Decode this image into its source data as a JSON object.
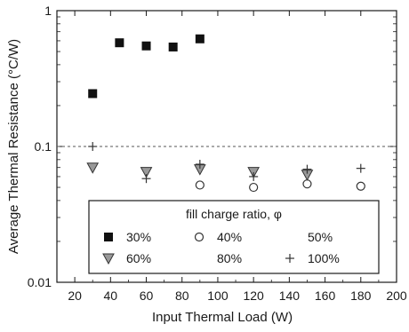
{
  "chart_data": {
    "type": "scatter",
    "xlabel": "Input Thermal Load (W)",
    "ylabel": "Average Thermal Resistance (°C/W)",
    "xlim": [
      10,
      200
    ],
    "ylim": [
      0.01,
      1
    ],
    "y_scale": "log",
    "grid": false,
    "x_ticks": [
      20,
      40,
      60,
      80,
      100,
      120,
      140,
      160,
      180,
      200
    ],
    "x_tick_labels": [
      "20",
      "40",
      "60",
      "80",
      "100",
      "120",
      "140",
      "160",
      "180",
      "200"
    ],
    "y_ticks": [
      0.01,
      0.1,
      1
    ],
    "y_tick_labels": [
      "0.01",
      "0.1",
      "1"
    ],
    "reference_line": {
      "y": 0.1,
      "style": "dashed"
    },
    "legend": {
      "title": "fill charge ratio, φ",
      "placement": "bottom-center"
    },
    "series": [
      {
        "name": "30%",
        "marker": "filled-square",
        "x": [
          30,
          45,
          60,
          75,
          90
        ],
        "y": [
          0.245,
          0.58,
          0.55,
          0.54,
          0.62
        ]
      },
      {
        "name": "40%",
        "marker": "open-circle",
        "x": [
          90,
          120,
          150,
          180
        ],
        "y": [
          0.052,
          0.05,
          0.053,
          0.051
        ]
      },
      {
        "name": "50%",
        "marker": "none-visible",
        "x": [],
        "y": []
      },
      {
        "name": "60%",
        "marker": "down-triangle",
        "x": [
          30,
          60,
          90,
          120,
          150
        ],
        "y": [
          0.07,
          0.065,
          0.068,
          0.065,
          0.062
        ]
      },
      {
        "name": "80%",
        "marker": "none-visible",
        "x": [],
        "y": []
      },
      {
        "name": "100%",
        "marker": "plus",
        "x": [
          30,
          60,
          90,
          120,
          150,
          180
        ],
        "y": [
          0.1,
          0.058,
          0.074,
          0.06,
          0.068,
          0.069
        ]
      }
    ]
  }
}
